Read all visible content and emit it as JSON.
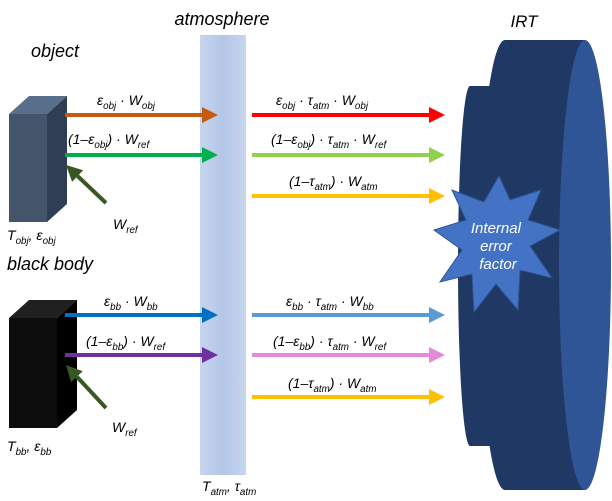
{
  "labels": {
    "atmosphere": "atmosphere",
    "irt": "IRT",
    "object": "object",
    "black_body": "black body",
    "internal_error": [
      "Internal",
      "error",
      "factor"
    ]
  },
  "formulas": {
    "obj_emit": "ε_obj · W_obj",
    "obj_refl": "(1–ε_obj) · W_ref",
    "obj_emit_out": "ε_obj · τ_atm · W_obj",
    "obj_refl_out": "(1–ε_obj) · τ_atm · W_ref",
    "atm_out_1": "(1–τ_atm) · W_atm",
    "bb_emit": "ε_bb · W_bb",
    "bb_refl": "(1–ε_bb) · W_ref",
    "bb_emit_out": "ε_bb · τ_atm · W_bb",
    "bb_refl_out": "(1–ε_bb) · τ_atm · W_ref",
    "atm_out_2": "(1–τ_atm) · W_atm",
    "wref_obj": "W_ref",
    "wref_bb": "W_ref",
    "obj_params": "T_obj, ε_obj",
    "bb_params": "T_bb, ε_bb",
    "atm_params": "T_atm, τ_atm"
  },
  "colors": {
    "obj_emit": "#c55a11",
    "obj_refl": "#00b050",
    "obj_emit_out": "#ff0000",
    "obj_refl_out": "#92d050",
    "atm_out": "#ffc000",
    "bb_emit": "#0070c0",
    "bb_refl": "#7030a0",
    "bb_emit_out": "#5b9bd5",
    "bb_refl_out": "#e58ad9",
    "wref_arrow": "#385723",
    "irt_body": "#1f3864",
    "atmosphere_band": "#b4c7e7",
    "burst": "#4472c4"
  }
}
